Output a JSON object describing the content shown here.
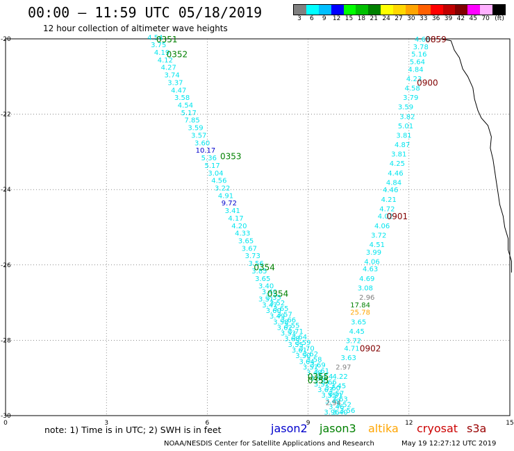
{
  "header": {
    "title": "00:00 – 11:59 UTC 05/18/2019",
    "subtitle": "12 hour collection of altimeter wave heights"
  },
  "colorbar": {
    "labels": [
      "3",
      "6",
      "9",
      "12",
      "15",
      "18",
      "21",
      "24",
      "27",
      "30",
      "33",
      "36",
      "39",
      "42",
      "45",
      "70",
      "(ft)"
    ],
    "colors": [
      "#808080",
      "#00ffff",
      "#00bfff",
      "#0000ff",
      "#00ff00",
      "#00c000",
      "#008000",
      "#ffff00",
      "#ffd700",
      "#ffa500",
      "#ff6000",
      "#ff0000",
      "#c00000",
      "#800000",
      "#ff00ff",
      "#ffb0ff",
      "#000000"
    ]
  },
  "chart_data": {
    "type": "map",
    "xlim": [
      0,
      15
    ],
    "ylim": [
      -30,
      -20
    ],
    "x_ticks": [
      "0",
      "3",
      "6",
      "9",
      "12",
      "15"
    ],
    "y_ticks": [
      "-20",
      "-22",
      "-24",
      "-26",
      "-28",
      "-30"
    ],
    "time_labels": [
      {
        "text": "0351",
        "lon": 4.8,
        "lat": -20.0,
        "color": "#008000"
      },
      {
        "text": "0352",
        "lon": 5.1,
        "lat": -20.4,
        "color": "#008000"
      },
      {
        "text": "0353",
        "lon": 6.7,
        "lat": -23.1,
        "color": "#008000"
      },
      {
        "text": "0354",
        "lon": 7.7,
        "lat": -26.05,
        "color": "#008000"
      },
      {
        "text": "0354",
        "lon": 8.1,
        "lat": -26.75,
        "color": "#008000"
      },
      {
        "text": "0355",
        "lon": 9.3,
        "lat": -28.95,
        "color": "#008000"
      },
      {
        "text": "0355",
        "lon": 9.3,
        "lat": -29.05,
        "color": "#008000"
      },
      {
        "text": "0859",
        "lon": 12.8,
        "lat": -20.0,
        "color": "#800000"
      },
      {
        "text": "0900",
        "lon": 12.55,
        "lat": -21.15,
        "color": "#800000"
      },
      {
        "text": "0901",
        "lon": 11.65,
        "lat": -24.7,
        "color": "#800000"
      },
      {
        "text": "0902",
        "lon": 10.85,
        "lat": -28.2,
        "color": "#800000"
      }
    ],
    "swh_readings": [
      {
        "value": "4.54",
        "lon": 4.45,
        "lat": -19.95,
        "color": "#00e5ee"
      },
      {
        "value": "3.75",
        "lon": 4.55,
        "lat": -20.15,
        "color": "#00e5ee"
      },
      {
        "value": "4.19",
        "lon": 4.65,
        "lat": -20.35,
        "color": "#00e5ee"
      },
      {
        "value": "4.12",
        "lon": 4.75,
        "lat": -20.55,
        "color": "#00e5ee"
      },
      {
        "value": "4.27",
        "lon": 4.85,
        "lat": -20.75,
        "color": "#00e5ee"
      },
      {
        "value": "3.74",
        "lon": 4.95,
        "lat": -20.95,
        "color": "#00e5ee"
      },
      {
        "value": "3.37",
        "lon": 5.05,
        "lat": -21.15,
        "color": "#00e5ee"
      },
      {
        "value": "4.47",
        "lon": 5.15,
        "lat": -21.35,
        "color": "#00e5ee"
      },
      {
        "value": "3.58",
        "lon": 5.25,
        "lat": -21.55,
        "color": "#00e5ee"
      },
      {
        "value": "4.54",
        "lon": 5.35,
        "lat": -21.75,
        "color": "#00e5ee"
      },
      {
        "value": "5.17",
        "lon": 5.45,
        "lat": -21.95,
        "color": "#00e5ee"
      },
      {
        "value": "7.85",
        "lon": 5.55,
        "lat": -22.15,
        "color": "#00e5ee"
      },
      {
        "value": "3.59",
        "lon": 5.65,
        "lat": -22.35,
        "color": "#00e5ee"
      },
      {
        "value": "3.57",
        "lon": 5.75,
        "lat": -22.55,
        "color": "#00e5ee"
      },
      {
        "value": "3.60",
        "lon": 5.85,
        "lat": -22.75,
        "color": "#00e5ee"
      },
      {
        "value": "10.17",
        "lon": 5.95,
        "lat": -22.95,
        "color": "#0000cd"
      },
      {
        "value": "5.36",
        "lon": 6.05,
        "lat": -23.15,
        "color": "#00e5ee"
      },
      {
        "value": "5.17",
        "lon": 6.15,
        "lat": -23.35,
        "color": "#00e5ee"
      },
      {
        "value": "3.04",
        "lon": 6.25,
        "lat": -23.55,
        "color": "#00e5ee"
      },
      {
        "value": "4.56",
        "lon": 6.35,
        "lat": -23.75,
        "color": "#00e5ee"
      },
      {
        "value": "3.22",
        "lon": 6.45,
        "lat": -23.95,
        "color": "#00e5ee"
      },
      {
        "value": "4.91",
        "lon": 6.55,
        "lat": -24.15,
        "color": "#00e5ee"
      },
      {
        "value": "9.72",
        "lon": 6.65,
        "lat": -24.35,
        "color": "#0000cd"
      },
      {
        "value": "3.41",
        "lon": 6.75,
        "lat": -24.55,
        "color": "#00e5ee"
      },
      {
        "value": "4.17",
        "lon": 6.85,
        "lat": -24.75,
        "color": "#00e5ee"
      },
      {
        "value": "4.20",
        "lon": 6.95,
        "lat": -24.95,
        "color": "#00e5ee"
      },
      {
        "value": "4.33",
        "lon": 7.05,
        "lat": -25.15,
        "color": "#00e5ee"
      },
      {
        "value": "3.65",
        "lon": 7.15,
        "lat": -25.35,
        "color": "#00e5ee"
      },
      {
        "value": "3.67",
        "lon": 7.25,
        "lat": -25.55,
        "color": "#00e5ee"
      },
      {
        "value": "3.73",
        "lon": 7.35,
        "lat": -25.75,
        "color": "#00e5ee"
      },
      {
        "value": "3.56",
        "lon": 7.45,
        "lat": -25.95,
        "color": "#00e5ee"
      },
      {
        "value": "3.85",
        "lon": 7.55,
        "lat": -26.15,
        "color": "#00e5ee"
      },
      {
        "value": "3.65",
        "lon": 7.65,
        "lat": -26.35,
        "color": "#00e5ee"
      },
      {
        "value": "3.40",
        "lon": 7.75,
        "lat": -26.55,
        "color": "#00e5ee"
      },
      {
        "value": "3.40",
        "lon": 7.85,
        "lat": -26.7,
        "color": "#00e5ee"
      },
      {
        "value": "3.35",
        "lon": 7.97,
        "lat": -26.85,
        "color": "#00e5ee"
      },
      {
        "value": "3.52",
        "lon": 8.08,
        "lat": -27.0,
        "color": "#00e5ee"
      },
      {
        "value": "3.65",
        "lon": 8.19,
        "lat": -27.15,
        "color": "#00e5ee"
      },
      {
        "value": "3.57",
        "lon": 8.3,
        "lat": -27.3,
        "color": "#00e5ee"
      },
      {
        "value": "3.66",
        "lon": 8.41,
        "lat": -27.45,
        "color": "#00e5ee"
      },
      {
        "value": "3.55",
        "lon": 8.52,
        "lat": -27.6,
        "color": "#00e5ee"
      },
      {
        "value": "3.71",
        "lon": 8.63,
        "lat": -27.75,
        "color": "#00e5ee"
      },
      {
        "value": "3.64",
        "lon": 8.74,
        "lat": -27.9,
        "color": "#00e5ee"
      },
      {
        "value": "3.59",
        "lon": 8.85,
        "lat": -28.05,
        "color": "#00e5ee"
      },
      {
        "value": "3.70",
        "lon": 8.96,
        "lat": -28.2,
        "color": "#00e5ee"
      },
      {
        "value": "3.62",
        "lon": 9.07,
        "lat": -28.35,
        "color": "#00e5ee"
      },
      {
        "value": "3.58",
        "lon": 9.18,
        "lat": -28.5,
        "color": "#00e5ee"
      },
      {
        "value": "3.69",
        "lon": 9.29,
        "lat": -28.65,
        "color": "#00e5ee"
      },
      {
        "value": "3.61",
        "lon": 9.4,
        "lat": -28.8,
        "color": "#00e5ee"
      },
      {
        "value": "3.54",
        "lon": 9.51,
        "lat": -28.95,
        "color": "#00e5ee"
      },
      {
        "value": "3.66",
        "lon": 9.62,
        "lat": -29.1,
        "color": "#00e5ee"
      },
      {
        "value": "3.60",
        "lon": 9.73,
        "lat": -29.25,
        "color": "#00e5ee"
      },
      {
        "value": "3.57",
        "lon": 9.84,
        "lat": -29.4,
        "color": "#00e5ee"
      },
      {
        "value": "3.63",
        "lon": 9.95,
        "lat": -29.55,
        "color": "#00e5ee"
      },
      {
        "value": "3.52",
        "lon": 10.06,
        "lat": -29.7,
        "color": "#00e5ee"
      },
      {
        "value": "3.56",
        "lon": 10.17,
        "lat": -29.85,
        "color": "#00e5ee"
      },
      {
        "value": "3.51",
        "lon": 7.75,
        "lat": -26.9,
        "color": "#00e5ee"
      },
      {
        "value": "3.47",
        "lon": 7.86,
        "lat": -27.05,
        "color": "#00e5ee"
      },
      {
        "value": "3.60",
        "lon": 7.97,
        "lat": -27.2,
        "color": "#00e5ee"
      },
      {
        "value": "3.49",
        "lon": 8.08,
        "lat": -27.35,
        "color": "#00e5ee"
      },
      {
        "value": "3.58",
        "lon": 8.19,
        "lat": -27.5,
        "color": "#00e5ee"
      },
      {
        "value": "3.62",
        "lon": 8.3,
        "lat": -27.65,
        "color": "#00e5ee"
      },
      {
        "value": "3.53",
        "lon": 8.41,
        "lat": -27.8,
        "color": "#00e5ee"
      },
      {
        "value": "3.68",
        "lon": 8.52,
        "lat": -27.95,
        "color": "#00e5ee"
      },
      {
        "value": "3.55",
        "lon": 8.63,
        "lat": -28.1,
        "color": "#00e5ee"
      },
      {
        "value": "3.61",
        "lon": 8.74,
        "lat": -28.25,
        "color": "#00e5ee"
      },
      {
        "value": "3.50",
        "lon": 8.85,
        "lat": -28.4,
        "color": "#00e5ee"
      },
      {
        "value": "3.64",
        "lon": 8.96,
        "lat": -28.55,
        "color": "#00e5ee"
      },
      {
        "value": "3.57",
        "lon": 9.07,
        "lat": -28.7,
        "color": "#00e5ee"
      },
      {
        "value": "3.48",
        "lon": 9.18,
        "lat": -28.85,
        "color": "#00e5ee"
      },
      {
        "value": "3.59",
        "lon": 9.29,
        "lat": -29.0,
        "color": "#00e5ee"
      },
      {
        "value": "3.52",
        "lon": 9.4,
        "lat": -29.15,
        "color": "#00e5ee"
      },
      {
        "value": "3.63",
        "lon": 9.51,
        "lat": -29.3,
        "color": "#00e5ee"
      },
      {
        "value": "3.55",
        "lon": 9.62,
        "lat": -29.45,
        "color": "#00e5ee"
      },
      {
        "value": "3.49",
        "lon": 9.73,
        "lat": -29.6,
        "color": "#00e5ee"
      },
      {
        "value": "3.46",
        "lon": 9.84,
        "lat": -29.75,
        "color": "#00e5ee"
      },
      {
        "value": "3.40",
        "lon": 9.95,
        "lat": -29.9,
        "color": "#00e5ee"
      },
      {
        "value": "4.60",
        "lon": 12.4,
        "lat": -20.0,
        "color": "#00e5ee"
      },
      {
        "value": "3.78",
        "lon": 12.35,
        "lat": -20.2,
        "color": "#00e5ee"
      },
      {
        "value": "5.16",
        "lon": 12.3,
        "lat": -20.4,
        "color": "#00e5ee"
      },
      {
        "value": "5.64",
        "lon": 12.25,
        "lat": -20.6,
        "color": "#00e5ee"
      },
      {
        "value": "4.84",
        "lon": 12.2,
        "lat": -20.8,
        "color": "#00e5ee"
      },
      {
        "value": "4.23",
        "lon": 12.15,
        "lat": -21.05,
        "color": "#00e5ee"
      },
      {
        "value": "4.58",
        "lon": 12.1,
        "lat": -21.3,
        "color": "#00e5ee"
      },
      {
        "value": "3.79",
        "lon": 12.05,
        "lat": -21.55,
        "color": "#00e5ee"
      },
      {
        "value": "3.59",
        "lon": 11.9,
        "lat": -21.8,
        "color": "#00e5ee"
      },
      {
        "value": "3.82",
        "lon": 11.95,
        "lat": -22.05,
        "color": "#00e5ee"
      },
      {
        "value": "5.01",
        "lon": 11.9,
        "lat": -22.3,
        "color": "#00e5ee"
      },
      {
        "value": "3.81",
        "lon": 11.85,
        "lat": -22.55,
        "color": "#00e5ee"
      },
      {
        "value": "4.87",
        "lon": 11.8,
        "lat": -22.8,
        "color": "#00e5ee"
      },
      {
        "value": "3.81",
        "lon": 11.7,
        "lat": -23.05,
        "color": "#00e5ee"
      },
      {
        "value": "4.25",
        "lon": 11.65,
        "lat": -23.3,
        "color": "#00e5ee"
      },
      {
        "value": "4.46",
        "lon": 11.6,
        "lat": -23.55,
        "color": "#00e5ee"
      },
      {
        "value": "4.84",
        "lon": 11.55,
        "lat": -23.8,
        "color": "#00e5ee"
      },
      {
        "value": "4.46",
        "lon": 11.45,
        "lat": -24.0,
        "color": "#00e5ee"
      },
      {
        "value": "4.21",
        "lon": 11.4,
        "lat": -24.25,
        "color": "#00e5ee"
      },
      {
        "value": "4.72",
        "lon": 11.35,
        "lat": -24.5,
        "color": "#00e5ee"
      },
      {
        "value": "4.02",
        "lon": 11.3,
        "lat": -24.7,
        "color": "#00e5ee"
      },
      {
        "value": "4.06",
        "lon": 11.2,
        "lat": -24.95,
        "color": "#00e5ee"
      },
      {
        "value": "3.72",
        "lon": 11.1,
        "lat": -25.2,
        "color": "#00e5ee"
      },
      {
        "value": "4.51",
        "lon": 11.05,
        "lat": -25.45,
        "color": "#00e5ee"
      },
      {
        "value": "3.99",
        "lon": 10.95,
        "lat": -25.65,
        "color": "#00e5ee"
      },
      {
        "value": "4.06",
        "lon": 10.9,
        "lat": -25.9,
        "color": "#00e5ee"
      },
      {
        "value": "4.63",
        "lon": 10.85,
        "lat": -26.1,
        "color": "#00e5ee"
      },
      {
        "value": "4.69",
        "lon": 10.75,
        "lat": -26.35,
        "color": "#00e5ee"
      },
      {
        "value": "3.08",
        "lon": 10.7,
        "lat": -26.6,
        "color": "#00e5ee"
      },
      {
        "value": "2.96",
        "lon": 10.75,
        "lat": -26.85,
        "color": "#808080"
      },
      {
        "value": "17.84",
        "lon": 10.55,
        "lat": -27.05,
        "color": "#008000"
      },
      {
        "value": "25.78",
        "lon": 10.55,
        "lat": -27.25,
        "color": "#ffa500"
      },
      {
        "value": "3.65",
        "lon": 10.5,
        "lat": -27.5,
        "color": "#00e5ee"
      },
      {
        "value": "4.45",
        "lon": 10.45,
        "lat": -27.75,
        "color": "#00e5ee"
      },
      {
        "value": "3.72",
        "lon": 10.35,
        "lat": -28.0,
        "color": "#00e5ee"
      },
      {
        "value": "4.71",
        "lon": 10.3,
        "lat": -28.2,
        "color": "#00e5ee"
      },
      {
        "value": "3.63",
        "lon": 10.2,
        "lat": -28.45,
        "color": "#00e5ee"
      },
      {
        "value": "2.97",
        "lon": 10.05,
        "lat": -28.7,
        "color": "#808080"
      },
      {
        "value": "4.22",
        "lon": 9.95,
        "lat": -28.95,
        "color": "#00e5ee"
      },
      {
        "value": "3.45",
        "lon": 9.9,
        "lat": -29.2,
        "color": "#00e5ee"
      },
      {
        "value": "3.31",
        "lon": 9.8,
        "lat": -29.45,
        "color": "#00e5ee"
      },
      {
        "value": "2.94",
        "lon": 9.75,
        "lat": -29.65,
        "color": "#808080"
      },
      {
        "value": "3.96",
        "lon": 9.7,
        "lat": -29.9,
        "color": "#00e5ee"
      }
    ],
    "coastline": [
      [
        12.95,
        -20.0
      ],
      [
        13.25,
        -20.05
      ],
      [
        13.35,
        -20.3
      ],
      [
        13.5,
        -20.5
      ],
      [
        13.6,
        -20.8
      ],
      [
        13.75,
        -21.0
      ],
      [
        13.9,
        -21.3
      ],
      [
        13.95,
        -21.6
      ],
      [
        14.05,
        -21.9
      ],
      [
        14.15,
        -22.1
      ],
      [
        14.35,
        -22.3
      ],
      [
        14.45,
        -22.6
      ],
      [
        14.42,
        -22.9
      ],
      [
        14.5,
        -23.2
      ],
      [
        14.55,
        -23.5
      ],
      [
        14.6,
        -23.8
      ],
      [
        14.65,
        -24.1
      ],
      [
        14.7,
        -24.4
      ],
      [
        14.8,
        -24.7
      ],
      [
        14.85,
        -25.0
      ],
      [
        14.95,
        -25.3
      ],
      [
        14.95,
        -25.6
      ],
      [
        15.05,
        -25.9
      ],
      [
        15.05,
        -26.2
      ]
    ]
  },
  "legend": {
    "note": "note:  1) Time is in UTC;  2) SWH is in feet",
    "satellites": [
      {
        "name": "jason2",
        "color": "#0000cc"
      },
      {
        "name": "jason3",
        "color": "#008000"
      },
      {
        "name": "altika",
        "color": "#ffa500"
      },
      {
        "name": "cryosat",
        "color": "#cc0000"
      },
      {
        "name": "s3a",
        "color": "#990000"
      }
    ]
  },
  "footer": {
    "credit": "NOAA/NESDIS Center for Satellite Applications and Research",
    "timestamp": "May 19 12:27:12 UTC 2019"
  }
}
